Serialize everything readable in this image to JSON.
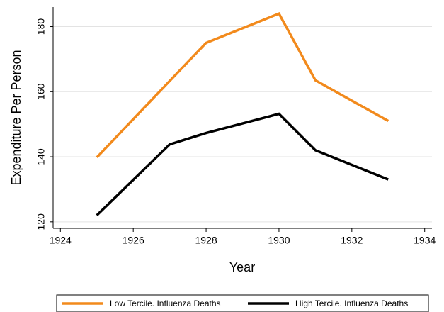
{
  "chart_data": {
    "type": "line",
    "x": [
      1925,
      1927,
      1928,
      1930,
      1931,
      1933
    ],
    "series": [
      {
        "name": "Low Tercile. Influenza Deaths",
        "color": "#f28a1c",
        "values": [
          139.8,
          163.3,
          175,
          184,
          163.5,
          151
        ]
      },
      {
        "name": "High Tercile. Influenza Deaths",
        "color": "#000000",
        "values": [
          122,
          143.8,
          147.3,
          153.2,
          142,
          133
        ]
      }
    ],
    "xlabel": "Year",
    "ylabel": "Expenditure Per Person",
    "xlim": [
      1923.8,
      1934.2
    ],
    "xticks": [
      1924,
      1926,
      1928,
      1930,
      1932,
      1934
    ],
    "ylim": [
      118,
      186
    ],
    "yticks": [
      120,
      140,
      160,
      180
    ],
    "grid": true,
    "legend": "bottom"
  }
}
